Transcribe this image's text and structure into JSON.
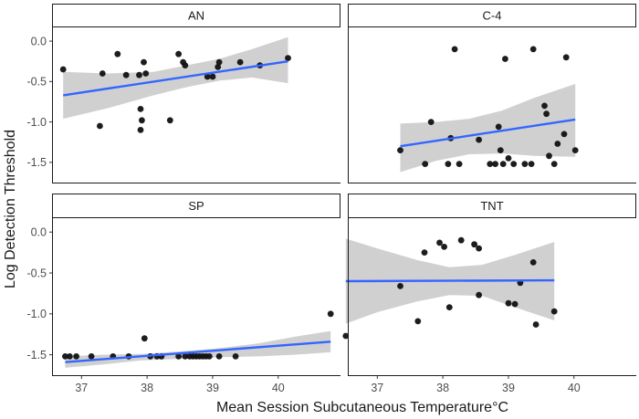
{
  "chart_data": {
    "type": "scatter",
    "xlabel": "Mean Session Subcutaneous Temperature°C",
    "ylabel": "Log Detection Threshold",
    "xlim": [
      36.55,
      40.95
    ],
    "ylim": [
      -1.75,
      0.17
    ],
    "x_ticks": [
      37,
      38,
      39,
      40
    ],
    "y_ticks": [
      0.0,
      -0.5,
      -1.0,
      -1.5
    ],
    "y_tick_labels": [
      "0.0",
      "-0.5",
      "-1.0",
      "-1.5"
    ],
    "x_tick_labels": [
      "37",
      "38",
      "39",
      "40"
    ],
    "fit": "linear regression with 95% confidence band",
    "colors": {
      "points": "#111111",
      "line": "#3366ff",
      "band": "#c8c8c8",
      "strip_bg": "#ffffff",
      "strip_border": "#1a1a1a"
    },
    "panels": [
      {
        "label": "AN",
        "points": [
          [
            36.72,
            -0.35
          ],
          [
            37.28,
            -1.05
          ],
          [
            37.32,
            -0.4
          ],
          [
            37.55,
            -0.16
          ],
          [
            37.68,
            -0.42
          ],
          [
            37.88,
            -0.42
          ],
          [
            37.9,
            -0.84
          ],
          [
            37.92,
            -0.98
          ],
          [
            37.9,
            -1.1
          ],
          [
            37.95,
            -0.26
          ],
          [
            37.98,
            -0.4
          ],
          [
            38.35,
            -0.98
          ],
          [
            38.48,
            -0.16
          ],
          [
            38.55,
            -0.26
          ],
          [
            38.58,
            -0.3
          ],
          [
            38.92,
            -0.44
          ],
          [
            39.0,
            -0.44
          ],
          [
            39.08,
            -0.32
          ],
          [
            39.1,
            -0.26
          ],
          [
            39.42,
            -0.26
          ],
          [
            39.72,
            -0.3
          ],
          [
            40.15,
            -0.21
          ]
        ],
        "fit_line": {
          "x": [
            36.72,
            40.15
          ],
          "y": [
            -0.67,
            -0.25
          ]
        },
        "band": {
          "x": [
            36.72,
            37.4,
            38.1,
            38.6,
            39.1,
            39.6,
            40.15
          ],
          "upper": [
            -0.38,
            -0.4,
            -0.38,
            -0.3,
            -0.22,
            -0.1,
            0.05
          ],
          "lower": [
            -0.96,
            -0.83,
            -0.67,
            -0.57,
            -0.49,
            -0.45,
            -0.52
          ]
        }
      },
      {
        "label": "C-4",
        "points": [
          [
            37.35,
            -1.35
          ],
          [
            37.73,
            -1.52
          ],
          [
            37.82,
            -1.0
          ],
          [
            38.08,
            -1.52
          ],
          [
            38.12,
            -1.2
          ],
          [
            38.18,
            -0.1
          ],
          [
            38.25,
            -1.52
          ],
          [
            38.55,
            -1.22
          ],
          [
            38.72,
            -1.52
          ],
          [
            38.8,
            -1.52
          ],
          [
            38.85,
            -1.06
          ],
          [
            38.88,
            -1.35
          ],
          [
            38.92,
            -1.52
          ],
          [
            38.95,
            -0.22
          ],
          [
            39.0,
            -1.45
          ],
          [
            39.08,
            -1.52
          ],
          [
            39.25,
            -1.52
          ],
          [
            39.35,
            -1.52
          ],
          [
            39.38,
            -0.1
          ],
          [
            39.55,
            -0.8
          ],
          [
            39.58,
            -0.9
          ],
          [
            39.62,
            -1.42
          ],
          [
            39.7,
            -1.52
          ],
          [
            39.75,
            -1.27
          ],
          [
            39.85,
            -1.15
          ],
          [
            39.88,
            -0.2
          ],
          [
            40.02,
            -1.35
          ]
        ],
        "fit_line": {
          "x": [
            37.35,
            40.02
          ],
          "y": [
            -1.3,
            -0.97
          ]
        },
        "band": {
          "x": [
            37.35,
            37.9,
            38.4,
            38.9,
            39.4,
            40.02
          ],
          "upper": [
            -1.02,
            -1.0,
            -0.96,
            -0.86,
            -0.7,
            -0.53
          ],
          "lower": [
            -1.62,
            -1.48,
            -1.4,
            -1.39,
            -1.42,
            -1.43
          ]
        }
      },
      {
        "label": "SP",
        "points": [
          [
            36.75,
            -1.52
          ],
          [
            36.82,
            -1.52
          ],
          [
            36.92,
            -1.52
          ],
          [
            37.15,
            -1.52
          ],
          [
            37.48,
            -1.52
          ],
          [
            37.72,
            -1.52
          ],
          [
            37.96,
            -1.3
          ],
          [
            38.05,
            -1.52
          ],
          [
            38.15,
            -1.52
          ],
          [
            38.22,
            -1.52
          ],
          [
            38.48,
            -1.52
          ],
          [
            38.58,
            -1.52
          ],
          [
            38.65,
            -1.52
          ],
          [
            38.7,
            -1.52
          ],
          [
            38.75,
            -1.52
          ],
          [
            38.8,
            -1.52
          ],
          [
            38.85,
            -1.52
          ],
          [
            38.9,
            -1.52
          ],
          [
            38.95,
            -1.52
          ],
          [
            39.1,
            -1.52
          ],
          [
            39.35,
            -1.52
          ],
          [
            40.8,
            -1.0
          ]
        ],
        "fit_line": {
          "x": [
            36.75,
            40.8
          ],
          "y": [
            -1.59,
            -1.34
          ]
        },
        "band": {
          "x": [
            36.75,
            37.3,
            37.9,
            38.5,
            39.1,
            39.7,
            40.25,
            40.8
          ],
          "upper": [
            -1.52,
            -1.5,
            -1.49,
            -1.46,
            -1.42,
            -1.36,
            -1.28,
            -1.21
          ],
          "lower": [
            -1.66,
            -1.62,
            -1.57,
            -1.55,
            -1.53,
            -1.52,
            -1.5,
            -1.47
          ]
        }
      },
      {
        "label": "TNT",
        "points": [
          [
            36.52,
            -1.27
          ],
          [
            37.35,
            -0.66
          ],
          [
            37.62,
            -1.09
          ],
          [
            37.72,
            -0.25
          ],
          [
            37.95,
            -0.13
          ],
          [
            38.02,
            -0.18
          ],
          [
            38.1,
            -0.92
          ],
          [
            38.28,
            -0.1
          ],
          [
            38.48,
            -0.15
          ],
          [
            38.55,
            -0.2
          ],
          [
            38.55,
            -0.77
          ],
          [
            39.0,
            -0.87
          ],
          [
            39.1,
            -0.88
          ],
          [
            39.18,
            -0.62
          ],
          [
            39.38,
            -0.37
          ],
          [
            39.42,
            -1.13
          ],
          [
            39.7,
            -0.97
          ]
        ],
        "fit_line": {
          "x": [
            36.52,
            39.7
          ],
          "y": [
            -0.6,
            -0.59
          ]
        },
        "band": {
          "x": [
            36.52,
            37.0,
            37.6,
            38.1,
            38.6,
            39.1,
            39.7
          ],
          "upper": [
            -0.08,
            -0.2,
            -0.34,
            -0.43,
            -0.4,
            -0.28,
            -0.12
          ],
          "lower": [
            -1.12,
            -0.98,
            -0.85,
            -0.77,
            -0.78,
            -0.92,
            -1.08
          ]
        }
      }
    ]
  }
}
